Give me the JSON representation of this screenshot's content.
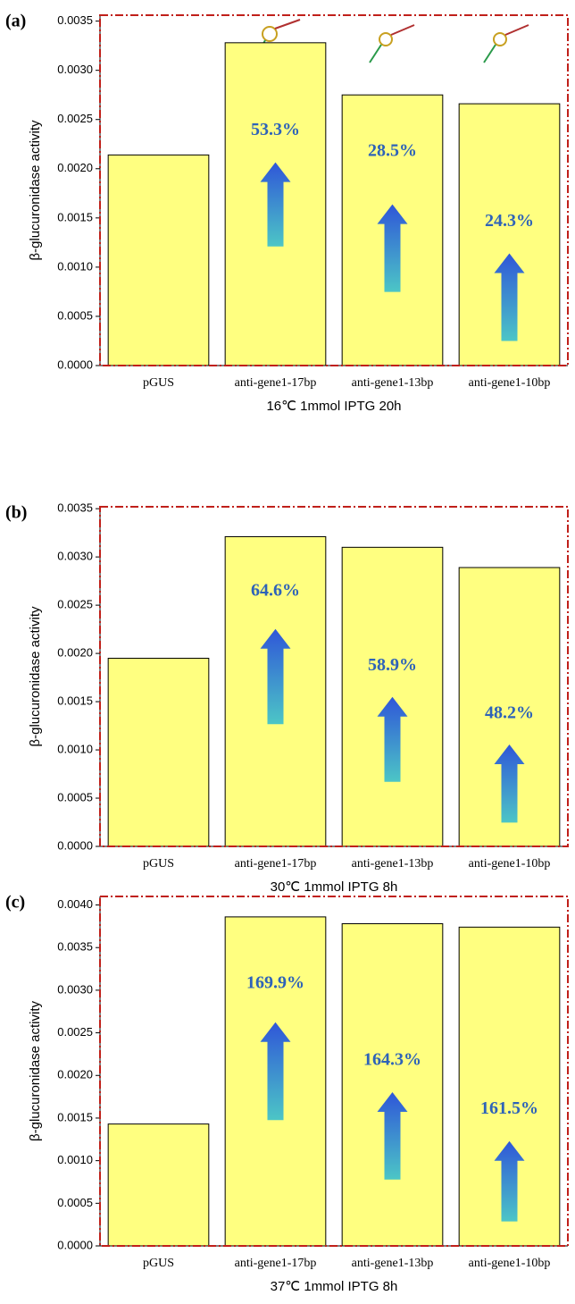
{
  "chart_data": [
    {
      "type": "bar",
      "panel_label": "(a)",
      "xlabel": "16℃ 1mmol IPTG 20h",
      "ylabel": "β-glucuronidase activity",
      "categories": [
        "pGUS",
        "anti-gene1-17bp",
        "anti-gene1-13bp",
        "anti-gene1-10bp"
      ],
      "values": [
        0.00214,
        0.00328,
        0.00275,
        0.00266
      ],
      "annotations": [
        "53.3%",
        "28.5%",
        "24.3%"
      ],
      "color": "#ffff80",
      "ylim": [
        0,
        0.00356
      ],
      "yticks": [
        {
          "value": 0,
          "label": "0.0000"
        },
        {
          "value": 0.0005,
          "label": "0.0005"
        },
        {
          "value": 0.001,
          "label": "0.0010"
        },
        {
          "value": 0.0015,
          "label": "0.0015"
        },
        {
          "value": 0.002,
          "label": "0.0020"
        },
        {
          "value": 0.0025,
          "label": "0.0025"
        },
        {
          "value": 0.003,
          "label": "0.0030"
        },
        {
          "value": 0.0035,
          "label": "0.0035"
        }
      ]
    },
    {
      "type": "bar",
      "panel_label": "(b)",
      "xlabel": "30℃ 1mmol IPTG 8h",
      "ylabel": "β-glucuronidase activity",
      "categories": [
        "pGUS",
        "anti-gene1-17bp",
        "anti-gene1-13bp",
        "anti-gene1-10bp"
      ],
      "values": [
        0.00195,
        0.00321,
        0.0031,
        0.00289
      ],
      "annotations": [
        "64.6%",
        "58.9%",
        "48.2%"
      ],
      "color": "#ffff80",
      "ylim": [
        0,
        0.00352
      ],
      "yticks": [
        {
          "value": 0,
          "label": "0.0000"
        },
        {
          "value": 0.0005,
          "label": "0.0005"
        },
        {
          "value": 0.001,
          "label": "0.0010"
        },
        {
          "value": 0.0015,
          "label": "0.0015"
        },
        {
          "value": 0.002,
          "label": "0.0020"
        },
        {
          "value": 0.0025,
          "label": "0.0025"
        },
        {
          "value": 0.003,
          "label": "0.0030"
        },
        {
          "value": 0.0035,
          "label": "0.0035"
        }
      ]
    },
    {
      "type": "bar",
      "panel_label": "(c)",
      "xlabel": "37℃ 1mmol IPTG 8h",
      "ylabel": "β-glucuronidase activity",
      "categories": [
        "pGUS",
        "anti-gene1-17bp",
        "anti-gene1-13bp",
        "anti-gene1-10bp"
      ],
      "values": [
        0.00143,
        0.00386,
        0.00378,
        0.00374
      ],
      "annotations": [
        "169.9%",
        "164.3%",
        "161.5%"
      ],
      "color": "#ffff80",
      "ylim": [
        0,
        0.0041
      ],
      "yticks": [
        {
          "value": 0,
          "label": "0.0000"
        },
        {
          "value": 0.0005,
          "label": "0.0005"
        },
        {
          "value": 0.001,
          "label": "0.0010"
        },
        {
          "value": 0.0015,
          "label": "0.0015"
        },
        {
          "value": 0.002,
          "label": "0.0020"
        },
        {
          "value": 0.0025,
          "label": "0.0025"
        },
        {
          "value": 0.003,
          "label": "0.0030"
        },
        {
          "value": 0.0035,
          "label": "0.0035"
        },
        {
          "value": 0.004,
          "label": "0.0040"
        }
      ]
    }
  ]
}
